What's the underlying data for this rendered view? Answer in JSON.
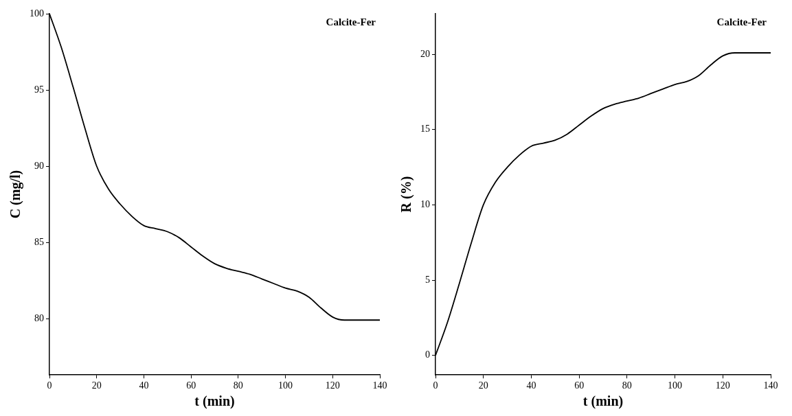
{
  "chart_data": [
    {
      "type": "line",
      "xlabel": "t (min)",
      "ylabel": "C (mg/l)",
      "annotations": [
        "Calcite-Fer"
      ],
      "x": [
        0,
        5,
        10,
        15,
        20,
        25,
        30,
        35,
        40,
        45,
        50,
        55,
        60,
        65,
        70,
        75,
        80,
        85,
        90,
        95,
        100,
        105,
        110,
        115,
        120,
        125,
        130,
        140
      ],
      "values": [
        100,
        97.8,
        95.2,
        92.5,
        90,
        88.5,
        87.5,
        86.7,
        86.1,
        85.9,
        85.7,
        85.3,
        84.7,
        84.1,
        83.6,
        83.3,
        83.1,
        82.9,
        82.6,
        82.3,
        82,
        81.8,
        81.4,
        80.7,
        80.1,
        79.9,
        79.9,
        79.9
      ],
      "color": "#000000",
      "xlim": [
        0,
        140
      ],
      "xticks": [
        0,
        20,
        40,
        60,
        80,
        100,
        120,
        140
      ],
      "ylim": [
        76.3,
        100
      ],
      "yticks": [
        80,
        85,
        90,
        95,
        100
      ],
      "grid": false,
      "marker": "none",
      "line_style": "solid"
    },
    {
      "type": "line",
      "xlabel": "t (min)",
      "ylabel": "R (%)",
      "annotations": [
        "Calcite-Fer"
      ],
      "x": [
        0,
        5,
        10,
        15,
        20,
        25,
        30,
        35,
        40,
        45,
        50,
        55,
        60,
        65,
        70,
        75,
        80,
        85,
        90,
        95,
        100,
        105,
        110,
        115,
        120,
        125,
        130,
        140
      ],
      "values": [
        0,
        2.2,
        4.8,
        7.5,
        10,
        11.5,
        12.5,
        13.3,
        13.9,
        14.1,
        14.3,
        14.7,
        15.3,
        15.9,
        16.4,
        16.7,
        16.9,
        17.1,
        17.4,
        17.7,
        18,
        18.2,
        18.6,
        19.3,
        19.9,
        20.1,
        20.1,
        20.1
      ],
      "color": "#000000",
      "xlim": [
        0,
        140
      ],
      "xticks": [
        0,
        20,
        40,
        60,
        80,
        100,
        120,
        140
      ],
      "ylim": [
        -1.3,
        22.7
      ],
      "yticks": [
        0,
        5,
        10,
        15,
        20
      ],
      "grid": false,
      "marker": "none",
      "line_style": "solid"
    }
  ]
}
